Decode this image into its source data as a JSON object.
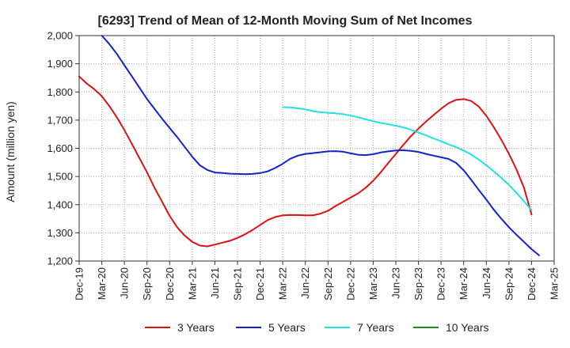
{
  "chart_data": {
    "type": "line",
    "title": "[6293]  Trend of Mean of 12-Month Moving Sum of Net Incomes",
    "xlabel": "",
    "ylabel": "Amount (million yen)",
    "ylim": [
      1200,
      2000
    ],
    "yticks": [
      1200,
      1300,
      1400,
      1500,
      1600,
      1700,
      1800,
      1900,
      2000
    ],
    "ytick_labels": [
      "1,200",
      "1,300",
      "1,400",
      "1,500",
      "1,600",
      "1,700",
      "1,800",
      "1,900",
      "2,000"
    ],
    "x_categories": [
      "Dec-19",
      "Mar-20",
      "Jun-20",
      "Sep-20",
      "Dec-20",
      "Mar-21",
      "Jun-21",
      "Sep-21",
      "Dec-21",
      "Mar-22",
      "Jun-22",
      "Sep-22",
      "Dec-22",
      "Mar-23",
      "Jun-23",
      "Sep-23",
      "Dec-23",
      "Mar-24",
      "Jun-24",
      "Sep-24",
      "Dec-24",
      "Mar-25"
    ],
    "grid": true,
    "legend_position": "bottom",
    "series": [
      {
        "name": "3 Years",
        "color": "#dd1111",
        "points": [
          [
            "Dec-19",
            1855
          ],
          [
            "Jan-20",
            1830
          ],
          [
            "Feb-20",
            1810
          ],
          [
            "Mar-20",
            1785
          ],
          [
            "Apr-20",
            1750
          ],
          [
            "May-20",
            1710
          ],
          [
            "Jun-20",
            1665
          ],
          [
            "Jul-20",
            1615
          ],
          [
            "Aug-20",
            1565
          ],
          [
            "Sep-20",
            1515
          ],
          [
            "Oct-20",
            1460
          ],
          [
            "Nov-20",
            1410
          ],
          [
            "Dec-20",
            1360
          ],
          [
            "Jan-21",
            1320
          ],
          [
            "Feb-21",
            1290
          ],
          [
            "Mar-21",
            1268
          ],
          [
            "Apr-21",
            1255
          ],
          [
            "May-21",
            1252
          ],
          [
            "Jun-21",
            1258
          ],
          [
            "Jul-21",
            1265
          ],
          [
            "Aug-21",
            1272
          ],
          [
            "Sep-21",
            1282
          ],
          [
            "Oct-21",
            1295
          ],
          [
            "Nov-21",
            1310
          ],
          [
            "Dec-21",
            1328
          ],
          [
            "Jan-22",
            1345
          ],
          [
            "Feb-22",
            1356
          ],
          [
            "Mar-22",
            1362
          ],
          [
            "Apr-22",
            1363
          ],
          [
            "May-22",
            1363
          ],
          [
            "Jun-22",
            1362
          ],
          [
            "Jul-22",
            1362
          ],
          [
            "Aug-22",
            1368
          ],
          [
            "Sep-22",
            1378
          ],
          [
            "Oct-22",
            1395
          ],
          [
            "Nov-22",
            1410
          ],
          [
            "Dec-22",
            1425
          ],
          [
            "Jan-23",
            1440
          ],
          [
            "Feb-23",
            1460
          ],
          [
            "Mar-23",
            1485
          ],
          [
            "Apr-23",
            1515
          ],
          [
            "May-23",
            1548
          ],
          [
            "Jun-23",
            1580
          ],
          [
            "Jul-23",
            1612
          ],
          [
            "Aug-23",
            1643
          ],
          [
            "Sep-23",
            1670
          ],
          [
            "Oct-23",
            1695
          ],
          [
            "Nov-23",
            1718
          ],
          [
            "Dec-23",
            1740
          ],
          [
            "Jan-24",
            1760
          ],
          [
            "Feb-24",
            1772
          ],
          [
            "Mar-24",
            1775
          ],
          [
            "Apr-24",
            1768
          ],
          [
            "May-24",
            1748
          ],
          [
            "Jun-24",
            1715
          ],
          [
            "Jul-24",
            1675
          ],
          [
            "Aug-24",
            1630
          ],
          [
            "Sep-24",
            1580
          ],
          [
            "Oct-24",
            1525
          ],
          [
            "Nov-24",
            1460
          ],
          [
            "Dec-24",
            1365
          ]
        ]
      },
      {
        "name": "5 Years",
        "color": "#1122cc",
        "points": [
          [
            "Mar-20",
            2000
          ],
          [
            "Apr-20",
            1970
          ],
          [
            "May-20",
            1935
          ],
          [
            "Jun-20",
            1895
          ],
          [
            "Jul-20",
            1855
          ],
          [
            "Aug-20",
            1815
          ],
          [
            "Sep-20",
            1775
          ],
          [
            "Oct-20",
            1740
          ],
          [
            "Nov-20",
            1705
          ],
          [
            "Dec-20",
            1672
          ],
          [
            "Jan-21",
            1640
          ],
          [
            "Feb-21",
            1605
          ],
          [
            "Mar-21",
            1570
          ],
          [
            "Apr-21",
            1540
          ],
          [
            "May-21",
            1523
          ],
          [
            "Jun-21",
            1514
          ],
          [
            "Jul-21",
            1512
          ],
          [
            "Aug-21",
            1510
          ],
          [
            "Sep-21",
            1509
          ],
          [
            "Oct-21",
            1508
          ],
          [
            "Nov-21",
            1509
          ],
          [
            "Dec-21",
            1512
          ],
          [
            "Jan-22",
            1518
          ],
          [
            "Feb-22",
            1530
          ],
          [
            "Mar-22",
            1545
          ],
          [
            "Apr-22",
            1563
          ],
          [
            "May-22",
            1574
          ],
          [
            "Jun-22",
            1580
          ],
          [
            "Jul-22",
            1583
          ],
          [
            "Aug-22",
            1586
          ],
          [
            "Sep-22",
            1589
          ],
          [
            "Oct-22",
            1590
          ],
          [
            "Nov-22",
            1588
          ],
          [
            "Dec-22",
            1582
          ],
          [
            "Jan-23",
            1577
          ],
          [
            "Feb-23",
            1576
          ],
          [
            "Mar-23",
            1579
          ],
          [
            "Apr-23",
            1585
          ],
          [
            "May-23",
            1589
          ],
          [
            "Jun-23",
            1592
          ],
          [
            "Jul-23",
            1593
          ],
          [
            "Aug-23",
            1591
          ],
          [
            "Sep-23",
            1587
          ],
          [
            "Oct-23",
            1580
          ],
          [
            "Nov-23",
            1574
          ],
          [
            "Dec-23",
            1568
          ],
          [
            "Jan-24",
            1562
          ],
          [
            "Feb-24",
            1548
          ],
          [
            "Mar-24",
            1522
          ],
          [
            "Apr-24",
            1488
          ],
          [
            "May-24",
            1452
          ],
          [
            "Jun-24",
            1418
          ],
          [
            "Jul-24",
            1382
          ],
          [
            "Aug-24",
            1350
          ],
          [
            "Sep-24",
            1320
          ],
          [
            "Oct-24",
            1293
          ],
          [
            "Nov-24",
            1268
          ],
          [
            "Dec-24",
            1242
          ],
          [
            "Jan-25",
            1220
          ]
        ]
      },
      {
        "name": "7 Years",
        "color": "#22e0e0",
        "points": [
          [
            "Mar-22",
            1746
          ],
          [
            "Apr-22",
            1745
          ],
          [
            "May-22",
            1742
          ],
          [
            "Jun-22",
            1738
          ],
          [
            "Jul-22",
            1732
          ],
          [
            "Aug-22",
            1728
          ],
          [
            "Sep-22",
            1726
          ],
          [
            "Oct-22",
            1724
          ],
          [
            "Nov-22",
            1721
          ],
          [
            "Dec-22",
            1716
          ],
          [
            "Jan-23",
            1710
          ],
          [
            "Feb-23",
            1703
          ],
          [
            "Mar-23",
            1696
          ],
          [
            "Apr-23",
            1690
          ],
          [
            "May-23",
            1685
          ],
          [
            "Jun-23",
            1680
          ],
          [
            "Jul-23",
            1674
          ],
          [
            "Aug-23",
            1666
          ],
          [
            "Sep-23",
            1656
          ],
          [
            "Oct-23",
            1646
          ],
          [
            "Nov-23",
            1635
          ],
          [
            "Dec-23",
            1625
          ],
          [
            "Jan-24",
            1614
          ],
          [
            "Feb-24",
            1604
          ],
          [
            "Mar-24",
            1592
          ],
          [
            "Apr-24",
            1578
          ],
          [
            "May-24",
            1560
          ],
          [
            "Jun-24",
            1540
          ],
          [
            "Jul-24",
            1518
          ],
          [
            "Aug-24",
            1495
          ],
          [
            "Sep-24",
            1470
          ],
          [
            "Oct-24",
            1442
          ],
          [
            "Nov-24",
            1412
          ],
          [
            "Dec-24",
            1380
          ]
        ]
      },
      {
        "name": "10 Years",
        "color": "#228822",
        "points": []
      }
    ]
  }
}
